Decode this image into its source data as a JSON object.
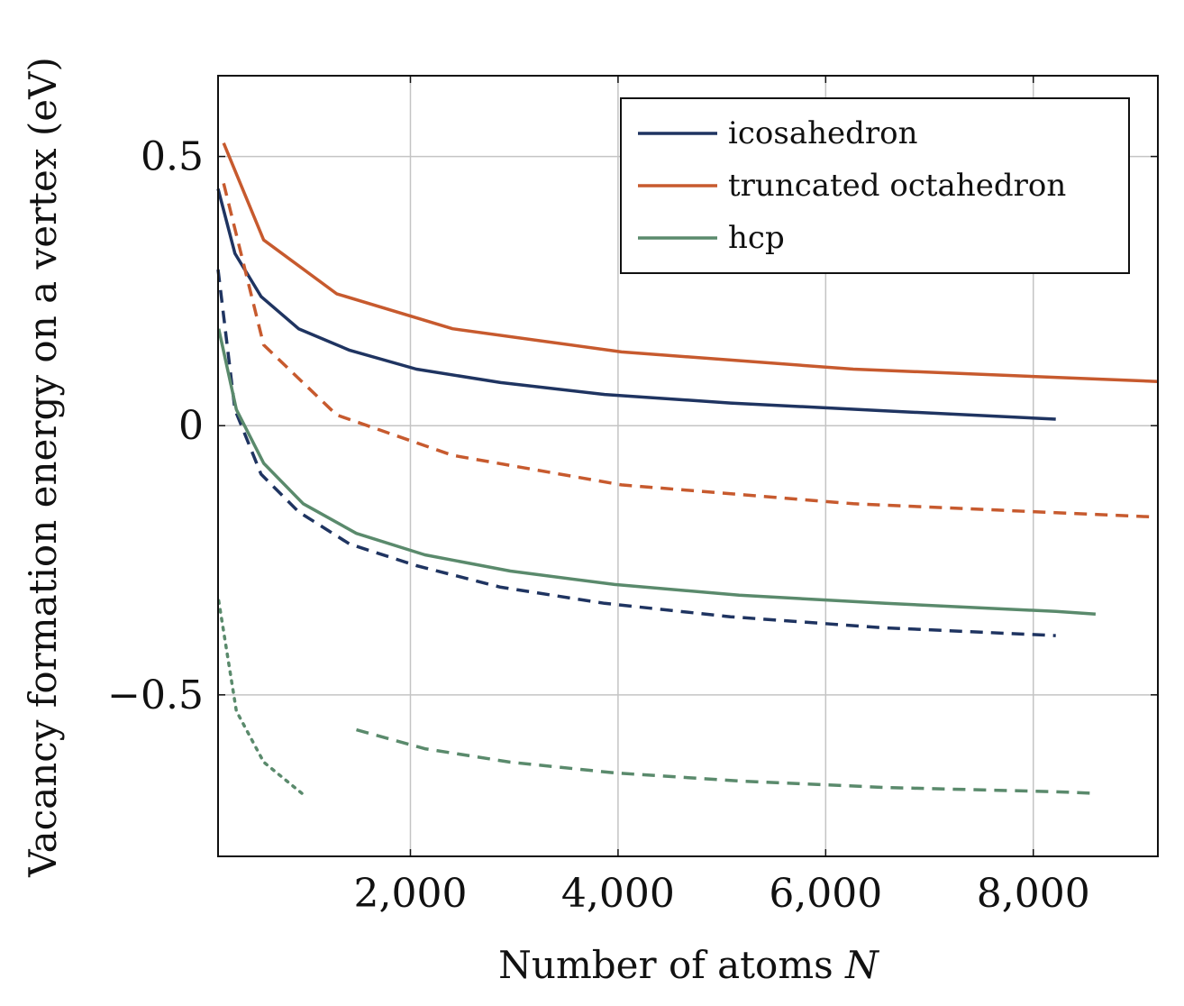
{
  "chart_data": {
    "type": "line",
    "xlabel": "Number of atoms",
    "xlabel_symbol": "N",
    "ylabel": "Vacancy formation energy on a vertex (eV)",
    "xlim": [
      147,
      9200
    ],
    "ylim": [
      -0.8,
      0.65
    ],
    "xticks": [
      2000,
      4000,
      6000,
      8000
    ],
    "xtick_labels": [
      "2,000",
      "4,000",
      "6,000",
      "8,000"
    ],
    "yticks": [
      0.5,
      0,
      -0.5
    ],
    "ytick_labels": [
      "0.5",
      "0",
      "−0.5"
    ],
    "grid": true,
    "legend_position": "top-right",
    "legend": [
      {
        "label": "icosahedron",
        "color": "#1f3461"
      },
      {
        "label": "truncated octahedron",
        "color": "#c75a2e"
      },
      {
        "label": "hcp",
        "color": "#5a8a6c"
      }
    ],
    "series": [
      {
        "name": "icosahedron",
        "style": "solid",
        "color": "#1f3461",
        "x": [
          147,
          309,
          561,
          923,
          1415,
          2057,
          2869,
          3871,
          5083,
          6525,
          8217
        ],
        "y": [
          0.44,
          0.32,
          0.24,
          0.18,
          0.14,
          0.105,
          0.08,
          0.058,
          0.042,
          0.028,
          0.012
        ]
      },
      {
        "name": "icosahedron (dashed)",
        "style": "dashed",
        "color": "#1f3461",
        "x": [
          147,
          309,
          561,
          923,
          1415,
          2057,
          2869,
          3871,
          5083,
          6525,
          8217
        ],
        "y": [
          0.29,
          0.03,
          -0.09,
          -0.16,
          -0.22,
          -0.26,
          -0.3,
          -0.33,
          -0.355,
          -0.375,
          -0.39
        ]
      },
      {
        "name": "truncated octahedron",
        "style": "solid",
        "color": "#c75a2e",
        "x": [
          201,
          586,
          1289,
          2406,
          4033,
          6266,
          9201
        ],
        "y": [
          0.525,
          0.345,
          0.245,
          0.18,
          0.137,
          0.105,
          0.082
        ]
      },
      {
        "name": "truncated octahedron (dashed)",
        "style": "dashed",
        "color": "#c75a2e",
        "x": [
          201,
          586,
          1289,
          2406,
          4033,
          6266,
          9201
        ],
        "y": [
          0.45,
          0.15,
          0.02,
          -0.055,
          -0.11,
          -0.145,
          -0.17
        ]
      },
      {
        "name": "hcp",
        "style": "solid",
        "color": "#5a8a6c",
        "x": [
          153,
          323,
          587,
          967,
          1479,
          2139,
          2963,
          3967,
          5167,
          6579,
          8219,
          8600
        ],
        "y": [
          0.18,
          0.03,
          -0.07,
          -0.145,
          -0.2,
          -0.24,
          -0.27,
          -0.295,
          -0.315,
          -0.33,
          -0.345,
          -0.35
        ]
      },
      {
        "name": "hcp (dashed)",
        "style": "dashed",
        "color": "#5a8a6c",
        "x": [
          1479,
          2139,
          2963,
          3967,
          5167,
          6579,
          8219,
          8600
        ],
        "y": [
          -0.565,
          -0.6,
          -0.625,
          -0.645,
          -0.66,
          -0.672,
          -0.68,
          -0.683
        ]
      },
      {
        "name": "hcp (dotted)",
        "style": "dotted",
        "color": "#5a8a6c",
        "x": [
          153,
          323,
          587,
          967
        ],
        "y": [
          -0.325,
          -0.53,
          -0.625,
          -0.685
        ]
      }
    ]
  }
}
